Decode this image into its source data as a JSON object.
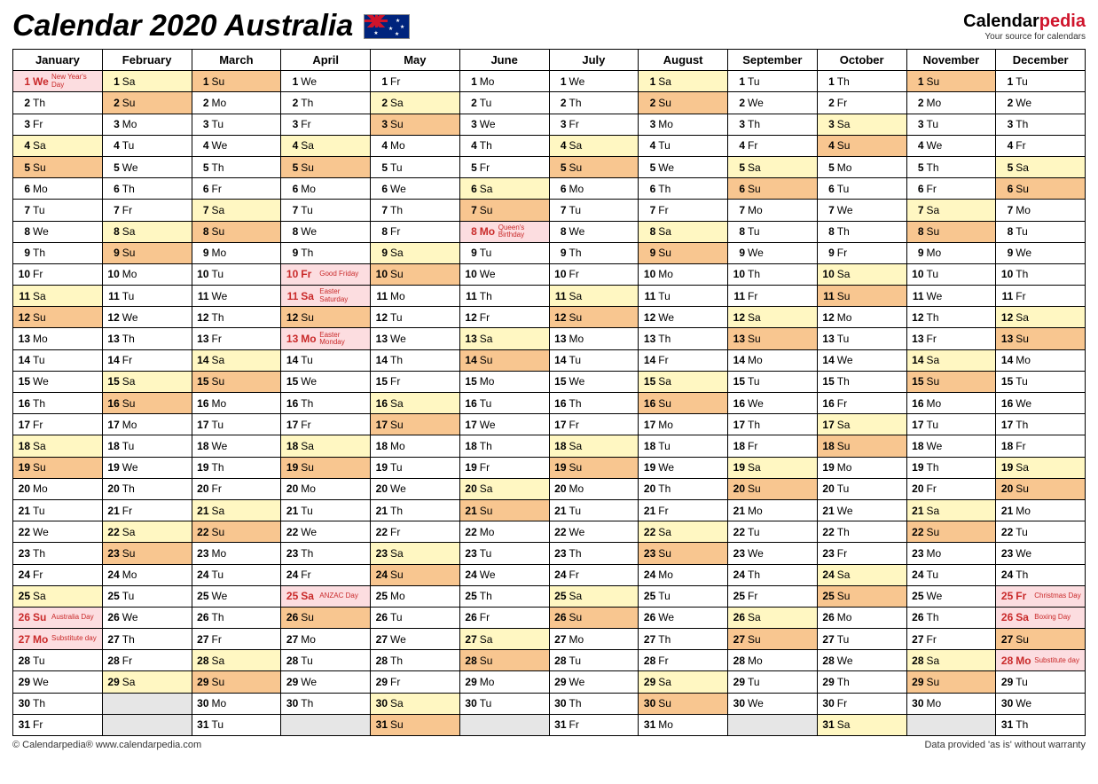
{
  "title": "Calendar 2020 Australia",
  "brand": {
    "name1": "Calendar",
    "name2": "pedia",
    "tagline": "Your source for calendars"
  },
  "footer": {
    "left": "© Calendarpedia®   www.calendarpedia.com",
    "right": "Data provided 'as is' without warranty"
  },
  "colors": {
    "saturday": "#fff7c2",
    "sunday": "#f8c690",
    "holiday": "#fcdde0",
    "empty": "#e6e6e6",
    "border": "#000000",
    "holiday_text": "#c92a2a"
  },
  "months": [
    "January",
    "February",
    "March",
    "April",
    "May",
    "June",
    "July",
    "August",
    "September",
    "October",
    "November",
    "December"
  ],
  "days_in_month": [
    31,
    29,
    31,
    30,
    31,
    30,
    31,
    31,
    30,
    31,
    30,
    31
  ],
  "first_weekday": [
    3,
    6,
    0,
    3,
    5,
    1,
    3,
    6,
    2,
    4,
    0,
    2
  ],
  "weekday_abbr": [
    "Su",
    "Mo",
    "Tu",
    "We",
    "Th",
    "Fr",
    "Sa"
  ],
  "holidays": {
    "0": {
      "1": "New Year's Day",
      "26": "Australia Day",
      "27": "Substitute day"
    },
    "3": {
      "10": "Good Friday",
      "11": "Easter Saturday",
      "13": "Easter Monday",
      "25": "ANZAC Day"
    },
    "5": {
      "8": "Queen's Birthday"
    },
    "11": {
      "25": "Christmas Day",
      "26": "Boxing Day",
      "28": "Substitute day"
    }
  }
}
